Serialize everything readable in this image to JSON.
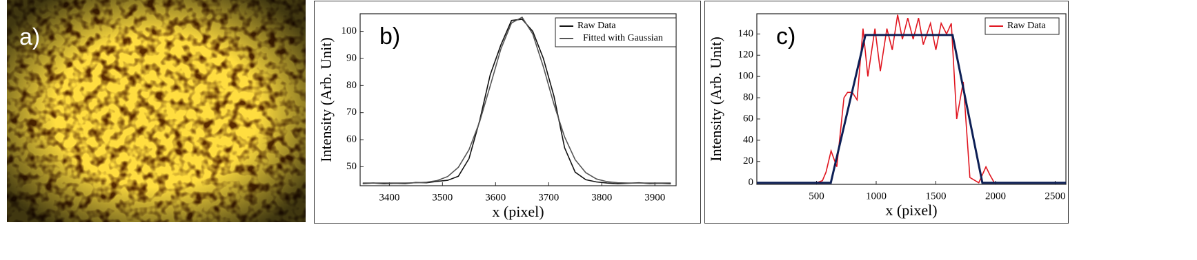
{
  "image_panel": {
    "label": "a)"
  },
  "chart_data": [
    {
      "type": "line",
      "panel_label": "b)",
      "ylabel": "Intensity (Arb. Unit)",
      "xlabel": "x (pixel)",
      "x": [
        3350,
        3370,
        3390,
        3410,
        3430,
        3450,
        3470,
        3490,
        3510,
        3530,
        3550,
        3570,
        3590,
        3610,
        3630,
        3650,
        3670,
        3690,
        3710,
        3730,
        3750,
        3770,
        3790,
        3810,
        3830,
        3850,
        3870,
        3890,
        3910,
        3930
      ],
      "series": [
        {
          "name": "Raw Data",
          "color": "#111111",
          "values": [
            43.8,
            44.0,
            43.7,
            43.9,
            43.8,
            44.2,
            44.1,
            44.6,
            45.0,
            46.5,
            53.0,
            67.0,
            84.0,
            95.0,
            104.0,
            104.5,
            100.0,
            90.0,
            76.0,
            57.0,
            48.0,
            45.2,
            44.4,
            44.0,
            43.7,
            43.9,
            44.1,
            43.8,
            43.9,
            43.7
          ]
        },
        {
          "name": "Fitted with Gaussian",
          "color": "#555555",
          "values": [
            44.0,
            44.0,
            44.0,
            44.0,
            44.0,
            44.1,
            44.3,
            44.9,
            46.4,
            49.8,
            56.3,
            66.6,
            79.9,
            93.5,
            103.1,
            105.2,
            99.0,
            86.9,
            73.0,
            61.0,
            52.6,
            47.8,
            45.5,
            44.5,
            44.1,
            44.0,
            44.0,
            44.0,
            44.0,
            44.0
          ]
        }
      ],
      "xlim": [
        3345,
        3940
      ],
      "xticks": [
        3400,
        3500,
        3600,
        3700,
        3800,
        3900
      ],
      "ylim": [
        43,
        106.5
      ],
      "yticks": [
        50,
        60,
        70,
        80,
        90,
        100
      ],
      "legend": "upper right"
    },
    {
      "type": "line",
      "panel_label": "c)",
      "ylabel": "Intensity (Arb. Unit)",
      "xlabel": "x (pixel)",
      "series": [
        {
          "name": "Raw Data",
          "color": "#e0141e",
          "x": [
            0,
            500,
            550,
            580,
            622,
            670,
            730,
            760,
            800,
            840,
            890,
            930,
            990,
            1035,
            1090,
            1135,
            1180,
            1220,
            1265,
            1310,
            1355,
            1395,
            1455,
            1500,
            1545,
            1590,
            1630,
            1675,
            1730,
            1785,
            1860,
            1920,
            1950,
            1990,
            2590
          ],
          "values": [
            0,
            0,
            2,
            10,
            30,
            15,
            80,
            85,
            85,
            78,
            145,
            100,
            145,
            105,
            145,
            125,
            158,
            135,
            155,
            135,
            155,
            130,
            150,
            125,
            150,
            140,
            150,
            60,
            95,
            5,
            0,
            15,
            8,
            0,
            0
          ]
        },
        {
          "color": "#0d1f55",
          "x": [
            0,
            620,
            910,
            1640,
            1890,
            2590
          ],
          "values": [
            0,
            0,
            139,
            139,
            0,
            0
          ]
        }
      ],
      "xlim": [
        0,
        2590
      ],
      "xticks": [
        500,
        1000,
        1500,
        2000,
        2500
      ],
      "ylim": [
        -1.5,
        159
      ],
      "yticks": [
        0,
        20,
        40,
        60,
        80,
        100,
        120,
        140
      ],
      "legend": "upper right"
    }
  ]
}
